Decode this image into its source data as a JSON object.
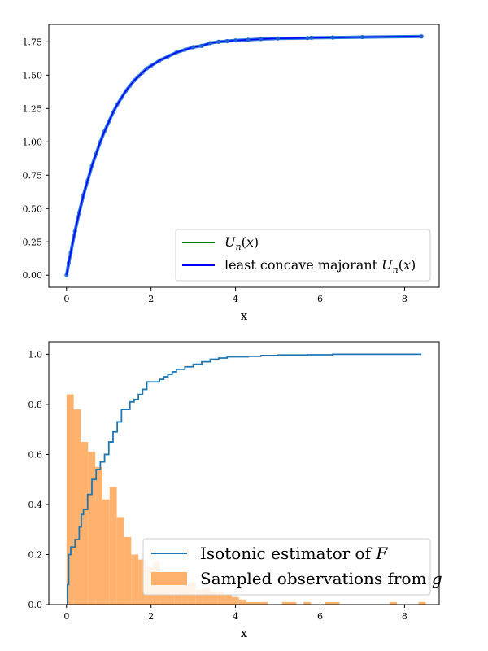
{
  "chart_data": [
    {
      "type": "line",
      "xlabel": "x",
      "ylabel": "",
      "xlim": [
        -0.42,
        8.82
      ],
      "ylim": [
        -0.09,
        1.88
      ],
      "xticks": [
        0,
        2,
        4,
        6,
        8
      ],
      "xtick_labels": [
        "0",
        "2",
        "4",
        "6",
        "8"
      ],
      "yticks": [
        0.0,
        0.25,
        0.5,
        0.75,
        1.0,
        1.25,
        1.5,
        1.75
      ],
      "ytick_labels": [
        "0.00",
        "0.25",
        "0.50",
        "0.75",
        "1.00",
        "1.25",
        "1.50",
        "1.75"
      ],
      "legend_position": "lower-right",
      "legend_labels": [
        "U_n(x)",
        "least concave majorant U_n(x)"
      ],
      "series": [
        {
          "name": "U_n(x)",
          "color": "#008000",
          "x": [
            0.0,
            0.05,
            0.1,
            0.2,
            0.3,
            0.4,
            0.5,
            0.6,
            0.7,
            0.8,
            0.9,
            1.0,
            1.1,
            1.2,
            1.3,
            1.4,
            1.5,
            1.6,
            1.7,
            1.8,
            1.9,
            2.0,
            2.2,
            2.4,
            2.6,
            2.8,
            3.0,
            3.2,
            3.4,
            3.6,
            3.8,
            4.0,
            4.3,
            4.6,
            5.0,
            5.7,
            5.8,
            6.3,
            7.0,
            8.4
          ],
          "y": [
            0.0,
            0.09,
            0.17,
            0.33,
            0.47,
            0.6,
            0.71,
            0.82,
            0.91,
            1.0,
            1.08,
            1.15,
            1.22,
            1.28,
            1.33,
            1.38,
            1.42,
            1.46,
            1.49,
            1.52,
            1.55,
            1.57,
            1.61,
            1.64,
            1.67,
            1.69,
            1.71,
            1.72,
            1.74,
            1.75,
            1.755,
            1.76,
            1.765,
            1.77,
            1.775,
            1.778,
            1.78,
            1.782,
            1.785,
            1.79
          ]
        },
        {
          "name": "least concave majorant U_n(x)",
          "color": "#0000ff",
          "x": [
            0.0,
            0.05,
            0.1,
            0.2,
            0.3,
            0.4,
            0.5,
            0.6,
            0.7,
            0.8,
            0.9,
            1.0,
            1.1,
            1.2,
            1.3,
            1.4,
            1.5,
            1.6,
            1.7,
            1.8,
            1.9,
            2.0,
            2.2,
            2.4,
            2.6,
            2.8,
            3.0,
            3.2,
            3.4,
            3.6,
            3.8,
            4.0,
            4.3,
            4.6,
            5.0,
            5.7,
            5.8,
            6.3,
            7.0,
            8.4
          ],
          "y": [
            0.0,
            0.09,
            0.17,
            0.33,
            0.47,
            0.6,
            0.71,
            0.82,
            0.91,
            1.0,
            1.08,
            1.15,
            1.22,
            1.28,
            1.33,
            1.38,
            1.42,
            1.46,
            1.49,
            1.52,
            1.55,
            1.57,
            1.61,
            1.64,
            1.67,
            1.69,
            1.71,
            1.72,
            1.74,
            1.75,
            1.755,
            1.76,
            1.765,
            1.77,
            1.775,
            1.778,
            1.78,
            1.782,
            1.785,
            1.79
          ]
        }
      ]
    },
    {
      "type": "histogram+step",
      "xlabel": "x",
      "ylabel": "",
      "xlim": [
        -0.42,
        8.82
      ],
      "ylim": [
        0.0,
        1.05
      ],
      "xticks": [
        0,
        2,
        4,
        6,
        8
      ],
      "xtick_labels": [
        "0",
        "2",
        "4",
        "6",
        "8"
      ],
      "yticks": [
        0.0,
        0.2,
        0.4,
        0.6,
        0.8,
        1.0
      ],
      "ytick_labels": [
        "0.0",
        "0.2",
        "0.4",
        "0.6",
        "0.8",
        "1.0"
      ],
      "legend_position": "lower-right",
      "legend_labels": [
        "Isotonic estimator of F",
        "Sampled observations from g"
      ],
      "step_series": {
        "name": "Isotonic estimator of F",
        "color": "#1f77b4",
        "x": [
          0.0,
          0.02,
          0.05,
          0.1,
          0.2,
          0.3,
          0.35,
          0.4,
          0.5,
          0.6,
          0.7,
          0.8,
          0.9,
          1.0,
          1.1,
          1.2,
          1.3,
          1.4,
          1.5,
          1.6,
          1.7,
          1.8,
          1.9,
          2.0,
          2.2,
          2.3,
          2.4,
          2.5,
          2.6,
          2.8,
          3.0,
          3.2,
          3.4,
          3.6,
          3.8,
          4.0,
          4.3,
          4.6,
          5.0,
          5.7,
          6.3,
          7.0,
          8.4
        ],
        "y": [
          0.0,
          0.08,
          0.2,
          0.23,
          0.26,
          0.31,
          0.36,
          0.38,
          0.44,
          0.5,
          0.54,
          0.57,
          0.6,
          0.65,
          0.69,
          0.73,
          0.78,
          0.78,
          0.81,
          0.82,
          0.84,
          0.86,
          0.89,
          0.89,
          0.9,
          0.91,
          0.92,
          0.93,
          0.94,
          0.95,
          0.96,
          0.97,
          0.98,
          0.985,
          0.99,
          0.99,
          0.992,
          0.995,
          0.997,
          0.998,
          1.0,
          1.0,
          1.0
        ]
      },
      "histogram": {
        "name": "Sampled observations from g",
        "color": "#ffb26e",
        "bin_width": 0.17,
        "bin_start": 0.0,
        "heights": [
          0.84,
          0.78,
          0.65,
          0.61,
          0.55,
          0.42,
          0.47,
          0.35,
          0.27,
          0.2,
          0.18,
          0.15,
          0.17,
          0.13,
          0.11,
          0.1,
          0.08,
          0.09,
          0.06,
          0.07,
          0.05,
          0.05,
          0.04,
          0.03,
          0.02,
          0.01,
          0.01,
          0.01,
          0.0,
          0.0,
          0.01,
          0.01,
          0.0,
          0.01,
          0.0,
          0.0,
          0.01,
          0.01,
          0.0,
          0.0,
          0.0,
          0.0,
          0.0,
          0.0,
          0.0,
          0.01,
          0.0,
          0.0,
          0.0,
          0.01
        ]
      }
    }
  ]
}
